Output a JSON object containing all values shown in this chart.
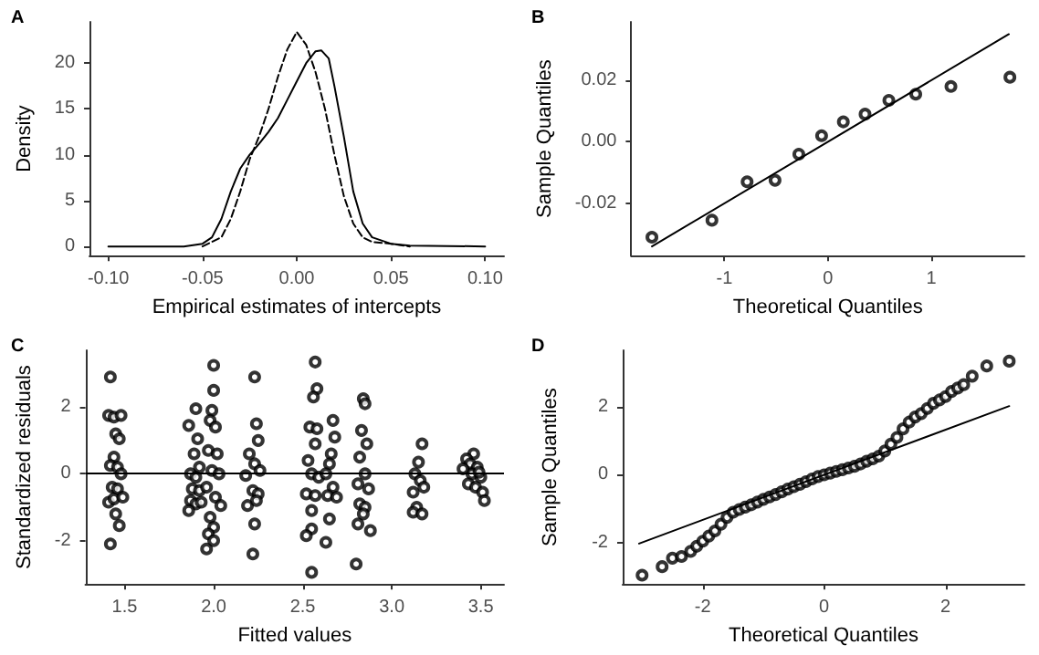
{
  "chart_data": [
    {
      "type": "line",
      "title": "A",
      "xlabel": "Empirical estimates of intercepts",
      "ylabel": "Density",
      "xlim": [
        -0.11,
        0.11
      ],
      "ylim": [
        -1,
        24.5
      ],
      "xticks": [
        {
          "value": -0.1,
          "label": "-0.10"
        },
        {
          "value": -0.05,
          "label": "-0.05"
        },
        {
          "value": 0,
          "label": "0.00"
        },
        {
          "value": 0.05,
          "label": "0.05"
        },
        {
          "value": 0.1,
          "label": "0.10"
        }
      ],
      "yticks": [
        0,
        5,
        10,
        15,
        20
      ],
      "series": [
        {
          "color": "#000000",
          "line_style": "solid",
          "x": [
            -0.1,
            -0.06,
            -0.05,
            -0.045,
            -0.04,
            -0.035,
            -0.03,
            -0.025,
            -0.02,
            -0.015,
            -0.01,
            -0.005,
            0,
            0.005,
            0.01,
            0.013,
            0.017,
            0.02,
            0.025,
            0.03,
            0.035,
            0.04,
            0.05,
            0.06,
            0.1
          ],
          "values": [
            0,
            0,
            0.3,
            1,
            3,
            6,
            8.5,
            10,
            11.2,
            12.5,
            14,
            16,
            18,
            20,
            21.3,
            21.4,
            20.5,
            17.5,
            12,
            6,
            2.5,
            1,
            0.3,
            0.1,
            0
          ]
        },
        {
          "color": "#000000",
          "line_style": "dashed",
          "x": [
            -0.05,
            -0.04,
            -0.035,
            -0.03,
            -0.025,
            -0.02,
            -0.015,
            -0.01,
            -0.005,
            0,
            0.005,
            0.01,
            0.015,
            0.02,
            0.025,
            0.03,
            0.035,
            0.04,
            0.05,
            0.06
          ],
          "values": [
            0,
            1,
            3,
            6,
            9.5,
            12,
            15,
            18.5,
            21.5,
            23.4,
            22,
            19,
            15,
            10,
            5.5,
            2.5,
            1,
            0.5,
            0.3,
            0
          ]
        }
      ]
    },
    {
      "type": "scatter",
      "title": "B",
      "xlabel": "Theoretical Quantiles",
      "ylabel": "Sample Quantiles",
      "xlim": [
        -1.9,
        1.9
      ],
      "ylim": [
        -0.037,
        0.039
      ],
      "marker": "circle",
      "xticks": [
        -1,
        0,
        1
      ],
      "yticks": [
        {
          "value": -0.02,
          "label": "-0.02"
        },
        {
          "value": 0,
          "label": "0.00"
        },
        {
          "value": 0.02,
          "label": "0.02"
        }
      ],
      "series": [
        {
          "color": "#000000",
          "x": [
            -1.7,
            -1.12,
            -0.78,
            -0.51,
            -0.28,
            -0.06,
            0.15,
            0.36,
            0.59,
            0.85,
            1.19,
            1.76
          ],
          "values": [
            -0.031,
            -0.0255,
            -0.013,
            -0.0125,
            -0.004,
            0.002,
            0.0065,
            0.009,
            0.0135,
            0.0155,
            0.018,
            0.021
          ]
        },
        {
          "type": "line",
          "marker": "none",
          "color": "#000000",
          "x": [
            -1.7,
            1.75
          ],
          "values": [
            -0.034,
            0.035
          ]
        }
      ]
    },
    {
      "type": "scatter",
      "title": "C",
      "xlabel": "Fitted values",
      "ylabel": "Standardized residuals",
      "xlim": [
        1.28,
        3.63
      ],
      "ylim": [
        -3.3,
        3.7
      ],
      "marker": "circle",
      "xticks": [
        {
          "value": 1.5,
          "label": "1.5"
        },
        {
          "value": 2,
          "label": "2.0"
        },
        {
          "value": 2.5,
          "label": "2.5"
        },
        {
          "value": 3,
          "label": "3.0"
        },
        {
          "value": 3.5,
          "label": "3.5"
        }
      ],
      "yticks": [
        -2,
        0,
        2
      ],
      "ref_lines": [
        {
          "axis": "y",
          "value": 0,
          "color": "#000000"
        }
      ],
      "series": [
        {
          "color": "#000000",
          "x": [
            1.42,
            1.41,
            1.44,
            1.48,
            1.45,
            1.47,
            1.44,
            1.42,
            1.46,
            1.48,
            1.43,
            1.46,
            1.41,
            1.44,
            1.49,
            1.45,
            1.47,
            1.42,
            1.86,
            1.9,
            1.91,
            1.89,
            1.92,
            1.87,
            1.9,
            1.88,
            1.92,
            1.87,
            1.9,
            1.86,
            1.93,
            2.0,
            2.0,
            1.99,
            1.98,
            2.01,
            1.97,
            2.02,
            1.99,
            2.03,
            1.96,
            2.01,
            2.04,
            1.98,
            2.0,
            1.97,
            2.0,
            1.96,
            2.23,
            2.24,
            2.25,
            2.2,
            2.23,
            2.26,
            2.18,
            2.22,
            2.25,
            2.19,
            2.24,
            2.23,
            2.22,
            2.57,
            2.58,
            2.56,
            2.54,
            2.58,
            2.57,
            2.53,
            2.55,
            2.59,
            2.52,
            2.57,
            2.55,
            2.55,
            2.52,
            2.55,
            2.67,
            2.68,
            2.66,
            2.65,
            2.63,
            2.67,
            2.64,
            2.69,
            2.65,
            2.63,
            2.84,
            2.85,
            2.83,
            2.86,
            2.82,
            2.85,
            2.81,
            2.87,
            2.82,
            2.85,
            2.81,
            2.84,
            2.88,
            2.8,
            3.17,
            3.15,
            3.13,
            3.16,
            3.12,
            3.14,
            3.12,
            3.17,
            3.18,
            3.46,
            3.42,
            3.44,
            3.48,
            3.45,
            3.5,
            3.43,
            3.47,
            3.51,
            3.52,
            3.4,
            3.49
          ],
          "values": [
            2.9,
            1.75,
            1.7,
            1.75,
            1.2,
            1.05,
            0.5,
            0.25,
            0.2,
            0,
            -0.4,
            -0.45,
            -0.85,
            -0.75,
            -0.7,
            -1.2,
            -1.55,
            -2.1,
            1.45,
            1.95,
            1.05,
            0.6,
            0.2,
            0,
            -0.1,
            -0.45,
            -0.5,
            -0.8,
            -0.9,
            -1.1,
            -0.85,
            3.25,
            2.5,
            1.9,
            1.6,
            1.4,
            0.7,
            0.6,
            0.1,
            0,
            -0.4,
            -0.7,
            -0.95,
            -1.3,
            -1.6,
            -1.8,
            -2,
            -2.25,
            2.9,
            1.5,
            1,
            0.6,
            0.3,
            0.1,
            -0.05,
            -0.5,
            -0.6,
            -0.95,
            -0.8,
            -1.5,
            -2.4,
            3.35,
            2.55,
            2.3,
            1.4,
            1.35,
            0.9,
            0.4,
            0,
            -0.1,
            -0.6,
            -0.65,
            -1.1,
            -1.65,
            -1.85,
            -2.95,
            1.6,
            1.1,
            0.6,
            0.3,
            0,
            -0.4,
            -0.65,
            -0.7,
            -1.35,
            -2.05,
            2.25,
            2.1,
            1.3,
            0.9,
            0.5,
            0,
            -0.3,
            -0.45,
            -0.9,
            -1,
            -1.5,
            -1.2,
            -1.7,
            -2.7,
            0.9,
            0.35,
            0,
            -0.2,
            -0.55,
            -1,
            -1.15,
            -1.2,
            -0.4,
            0.6,
            0.45,
            0.3,
            0.2,
            0,
            -0.1,
            -0.3,
            -0.4,
            -0.55,
            -0.8,
            0.15,
            0.05
          ]
        }
      ]
    },
    {
      "type": "scatter",
      "title": "D",
      "xlabel": "Theoretical Quantiles",
      "ylabel": "Sample Quantiles",
      "xlim": [
        -3.32,
        3.3
      ],
      "ylim": [
        -3.21,
        3.66
      ],
      "marker": "circle",
      "xticks": [
        -2,
        0,
        2
      ],
      "yticks": [
        -2,
        0,
        2
      ],
      "series": [
        {
          "color": "#000000",
          "x": [
            -3,
            -2.67,
            -2.5,
            -2.35,
            -2.2,
            -2.1,
            -2,
            -1.9,
            -1.8,
            -1.7,
            -1.6,
            -1.5,
            -1.4,
            -1.3,
            -1.2,
            -1.1,
            -1,
            -0.9,
            -0.8,
            -0.7,
            -0.6,
            -0.5,
            -0.4,
            -0.3,
            -0.2,
            -0.1,
            0,
            0.1,
            0.2,
            0.3,
            0.4,
            0.5,
            0.6,
            0.7,
            0.8,
            0.9,
            1,
            1.1,
            1.2,
            1.3,
            1.4,
            1.5,
            1.6,
            1.7,
            1.8,
            1.9,
            2,
            2.1,
            2.2,
            2.3,
            2.44,
            2.68,
            3.05
          ],
          "values": [
            -2.95,
            -2.7,
            -2.45,
            -2.4,
            -2.25,
            -2.1,
            -1.95,
            -1.8,
            -1.65,
            -1.45,
            -1.25,
            -1.1,
            -1.02,
            -0.95,
            -0.88,
            -0.8,
            -0.72,
            -0.65,
            -0.58,
            -0.5,
            -0.42,
            -0.35,
            -0.28,
            -0.2,
            -0.12,
            -0.05,
            0,
            0.05,
            0.1,
            0.15,
            0.2,
            0.25,
            0.32,
            0.4,
            0.47,
            0.55,
            0.7,
            0.9,
            1.1,
            1.35,
            1.55,
            1.7,
            1.8,
            1.95,
            2.1,
            2.2,
            2.3,
            2.45,
            2.55,
            2.65,
            2.9,
            3.2,
            3.34
          ]
        },
        {
          "type": "line",
          "marker": "none",
          "color": "#000000",
          "x": [
            -3.05,
            3.05
          ],
          "values": [
            -2.02,
            2.02
          ]
        }
      ]
    }
  ]
}
